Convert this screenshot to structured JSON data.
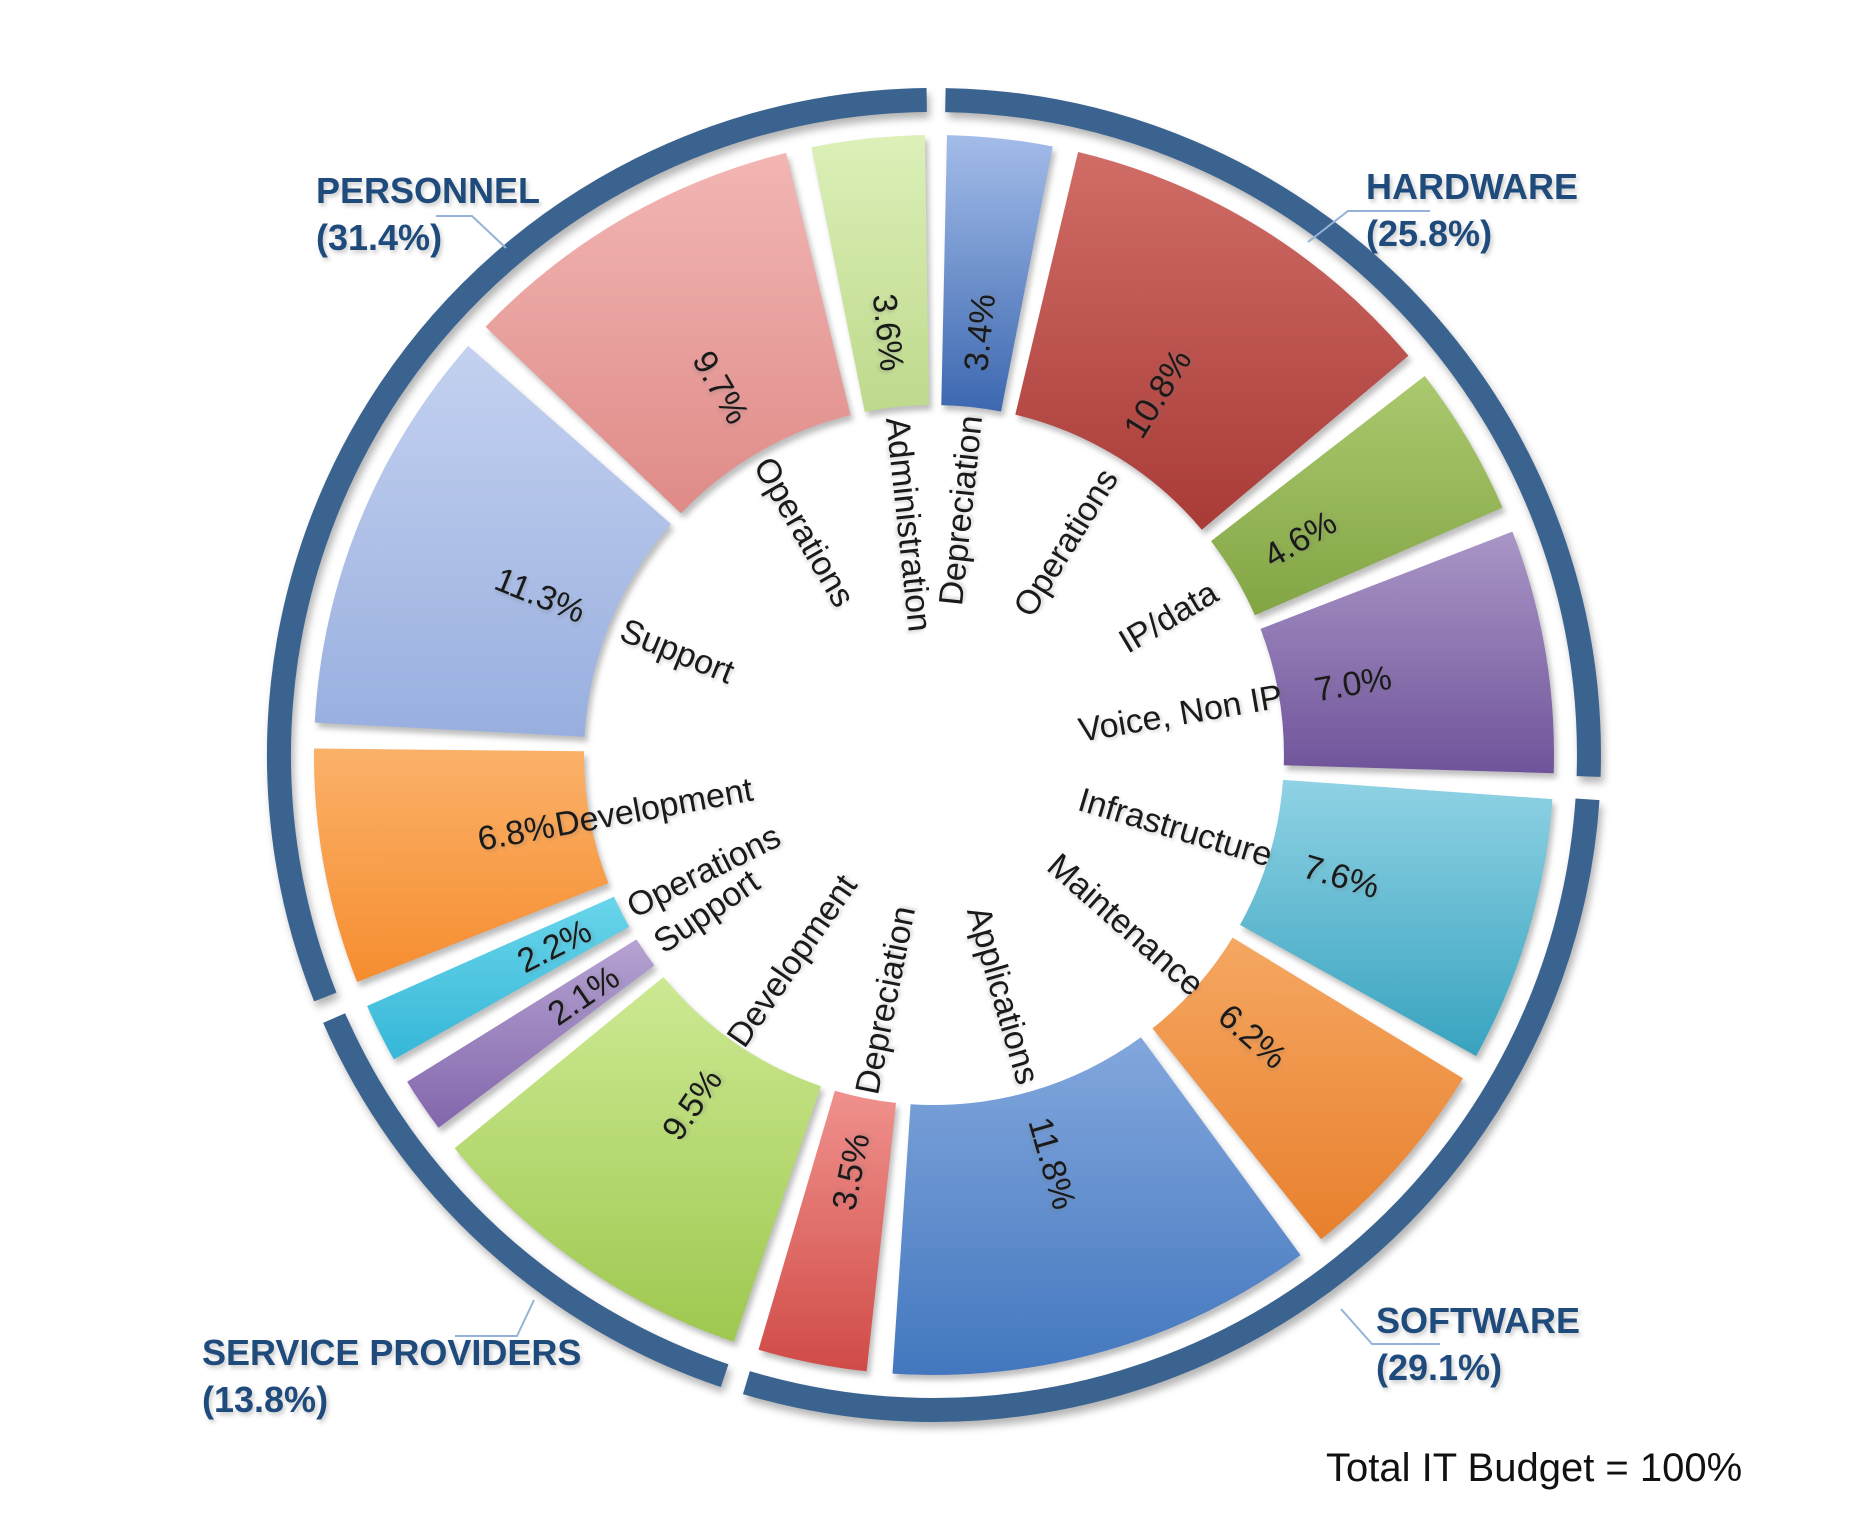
{
  "chart_data": {
    "type": "pie",
    "subtype": "radial-wheel",
    "units": "percent of total IT budget",
    "total_label": "Total IT Budget = 100%",
    "groups": [
      {
        "id": "hardware",
        "name": "HARDWARE",
        "pct_label": "(25.8%)",
        "value": 25.8
      },
      {
        "id": "software",
        "name": "SOFTWARE",
        "pct_label": "(29.1%)",
        "value": 29.1
      },
      {
        "id": "service_providers",
        "name": "SERVICE PROVIDERS",
        "pct_label": "(13.8%)",
        "value": 13.8
      },
      {
        "id": "personnel",
        "name": "PERSONNEL",
        "pct_label": "(31.4%)",
        "value": 31.4
      }
    ],
    "segments": [
      {
        "group": "hardware",
        "label": "Depreciation",
        "value": 3.4,
        "pct_text": "3.4%",
        "color_light": "#A3BCE9",
        "color_dark": "#3C68B0"
      },
      {
        "group": "hardware",
        "label": "Operations",
        "value": 10.8,
        "pct_text": "10.8%",
        "color_light": "#D06C66",
        "color_dark": "#A93B37"
      },
      {
        "group": "hardware",
        "label": "IP/data",
        "value": 4.6,
        "pct_text": "4.6%",
        "color_light": "#ABC96F",
        "color_dark": "#82A544"
      },
      {
        "group": "hardware",
        "label": "Voice, Non IP",
        "value": 7.0,
        "pct_text": "7.0%",
        "color_light": "#A996C6",
        "color_dark": "#70549B"
      },
      {
        "group": "software",
        "label": "Infrastructure",
        "value": 7.6,
        "pct_text": "7.6%",
        "color_light": "#8FD2E4",
        "color_dark": "#38A3BF"
      },
      {
        "group": "software",
        "label": "Maintenance",
        "value": 6.2,
        "pct_text": "6.2%",
        "color_light": "#F5A761",
        "color_dark": "#E8802D"
      },
      {
        "group": "software",
        "label": "Applications",
        "value": 11.8,
        "pct_text": "11.8%",
        "color_light": "#82A7DD",
        "color_dark": "#4377BE"
      },
      {
        "group": "software",
        "label": "Depreciation",
        "value": 3.5,
        "pct_text": "3.5%",
        "color_light": "#F0918D",
        "color_dark": "#D04B47"
      },
      {
        "group": "service_providers",
        "label": "Development",
        "value": 9.5,
        "pct_text": "9.5%",
        "color_light": "#CDE993",
        "color_dark": "#9EC84F"
      },
      {
        "group": "service_providers",
        "label": "Support",
        "value": 2.1,
        "pct_text": "2.1%",
        "color_light": "#B5A3D2",
        "color_dark": "#8366AC"
      },
      {
        "group": "service_providers",
        "label": "Operations",
        "value": 2.2,
        "pct_text": "2.2%",
        "color_light": "#69D5EB",
        "color_dark": "#36B7D8"
      },
      {
        "group": "personnel",
        "label": "Development",
        "value": 6.8,
        "pct_text": "6.8%",
        "color_light": "#FBB169",
        "color_dark": "#F68D2F"
      },
      {
        "group": "personnel",
        "label": "Support",
        "value": 11.3,
        "pct_text": "11.3%",
        "color_light": "#C4D1F0",
        "color_dark": "#98AFDF"
      },
      {
        "group": "personnel",
        "label": "Operations",
        "value": 9.7,
        "pct_text": "9.7%",
        "color_light": "#F2B6B3",
        "color_dark": "#DF8B88"
      },
      {
        "group": "personnel",
        "label": "Administration",
        "value": 3.6,
        "pct_text": "3.6%",
        "color_light": "#DCF0B8",
        "color_dark": "#BED98C"
      }
    ]
  },
  "colors": {
    "ring": "#3A6390",
    "group_label": "#1F4A7C",
    "callout": "#95B3D7",
    "segment_text": "#1A1A1A",
    "total_text": "#111111",
    "background": "#FFFFFF"
  }
}
